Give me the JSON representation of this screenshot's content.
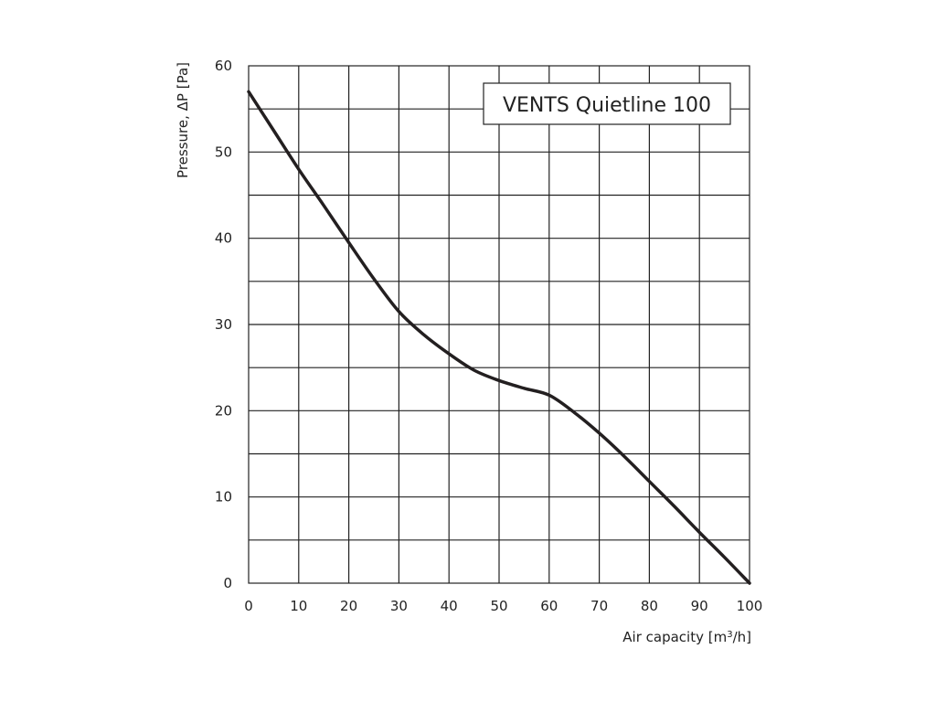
{
  "chart_data": {
    "type": "line",
    "title": "VENTS Quietline 100",
    "xlabel": "Air capacity [m",
    "xlabel_sup": "3",
    "xlabel_end": "/h]",
    "ylabel": "Pressure, ΔP [Pa]",
    "xlim": [
      0,
      100
    ],
    "ylim": [
      0,
      60
    ],
    "x_ticks": [
      0,
      10,
      20,
      30,
      40,
      50,
      60,
      70,
      80,
      90,
      100
    ],
    "y_ticks": [
      0,
      10,
      20,
      30,
      40,
      50,
      60
    ],
    "x_grid_step": 10,
    "y_grid_step": 5,
    "grid": true,
    "legend_placement": "top-right",
    "line_color": "#231f20",
    "series": [
      {
        "name": "VENTS Quietline 100",
        "x": [
          0,
          5,
          10,
          15,
          20,
          25,
          30,
          35,
          40,
          45,
          50,
          55,
          60,
          65,
          70,
          75,
          80,
          85,
          90,
          95,
          100
        ],
        "y": [
          57,
          52.5,
          48,
          43.8,
          39.5,
          35.3,
          31.5,
          28.8,
          26.6,
          24.7,
          23.5,
          22.6,
          21.8,
          19.8,
          17.4,
          14.7,
          11.8,
          8.9,
          5.9,
          3,
          0
        ]
      }
    ]
  }
}
